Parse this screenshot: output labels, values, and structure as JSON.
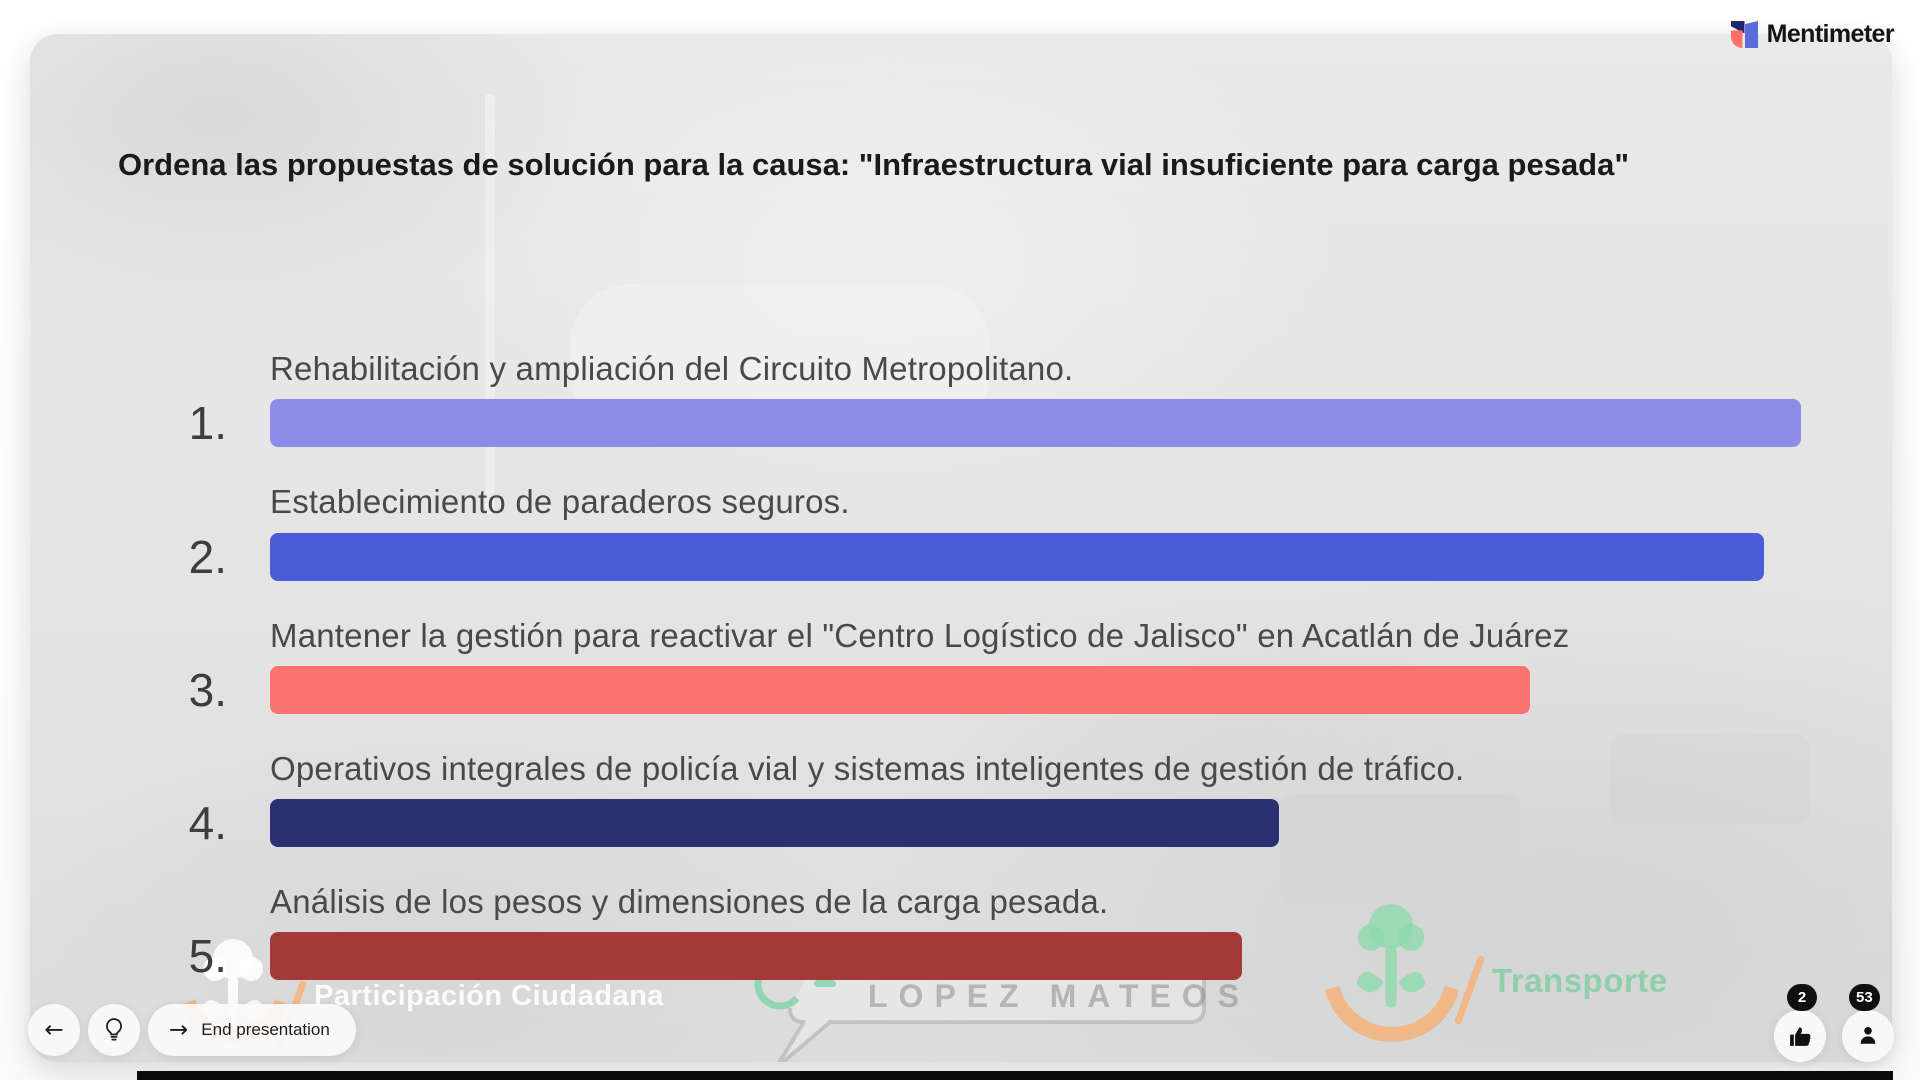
{
  "brand": {
    "name": "Mentimeter"
  },
  "slide": {
    "title": "Ordena las propuestas de solución para la causa: \"Infraestructura vial insuficiente para carga pesada\"",
    "items": [
      {
        "rank": "1.",
        "label": "Rehabilitación y ampliación del Circuito Metropolitano.",
        "color": "#8d8de9",
        "width_pct": 100
      },
      {
        "rank": "2.",
        "label": "Establecimiento de paraderos seguros.",
        "color": "#4a5dd8",
        "width_pct": 97.6
      },
      {
        "rank": "3.",
        "label": "Mantener la gestión para reactivar el \"Centro Logístico de Jalisco\" en Acatlán de Juárez",
        "color": "#fc736f",
        "width_pct": 82.3
      },
      {
        "rank": "4.",
        "label": "Operativos integrales de policía vial y sistemas inteligentes de gestión de tráfico.",
        "color": "#2b3170",
        "width_pct": 65.9
      },
      {
        "rank": "5.",
        "label": "Análisis de los pesos y dimensiones de la carga pesada.",
        "color": "#a43a38",
        "width_pct": 63.5
      }
    ]
  },
  "chart_data": {
    "type": "bar",
    "orientation": "horizontal",
    "title": "Ordena las propuestas de solución para la causa: \"Infraestructura vial insuficiente para carga pesada\"",
    "categories": [
      "Rehabilitación y ampliación del Circuito Metropolitano.",
      "Establecimiento de paraderos seguros.",
      "Mantener la gestión para reactivar el \"Centro Logístico de Jalisco\" en Acatlán de Juárez",
      "Operativos integrales de policía vial y sistemas inteligentes de gestión de tráfico.",
      "Análisis de los pesos y dimensiones de la carga pesada."
    ],
    "values_relative_pct": [
      100,
      97.6,
      82.3,
      65.9,
      63.5
    ],
    "colors": [
      "#8d8de9",
      "#4a5dd8",
      "#fc736f",
      "#2b3170",
      "#a43a38"
    ],
    "value_labels_shown": false,
    "axis_shown": false
  },
  "watermarks": {
    "left_label": "Participación Ciudadana",
    "center_label": "LOPEZ MATEOS",
    "right_label": "Transporte"
  },
  "footer": {
    "end_button_label": "End presentation",
    "likes_badge": "2",
    "participants_badge": "53"
  },
  "icons": {
    "back_arrow": "←",
    "forward_arrow": "→"
  },
  "colors": {
    "brand_coral": "#ff7066",
    "brand_blue": "#5a6bdb",
    "brand_navy": "#1f2766",
    "watermark_green": "#8fd9ad",
    "watermark_orange": "#f4b27a"
  }
}
